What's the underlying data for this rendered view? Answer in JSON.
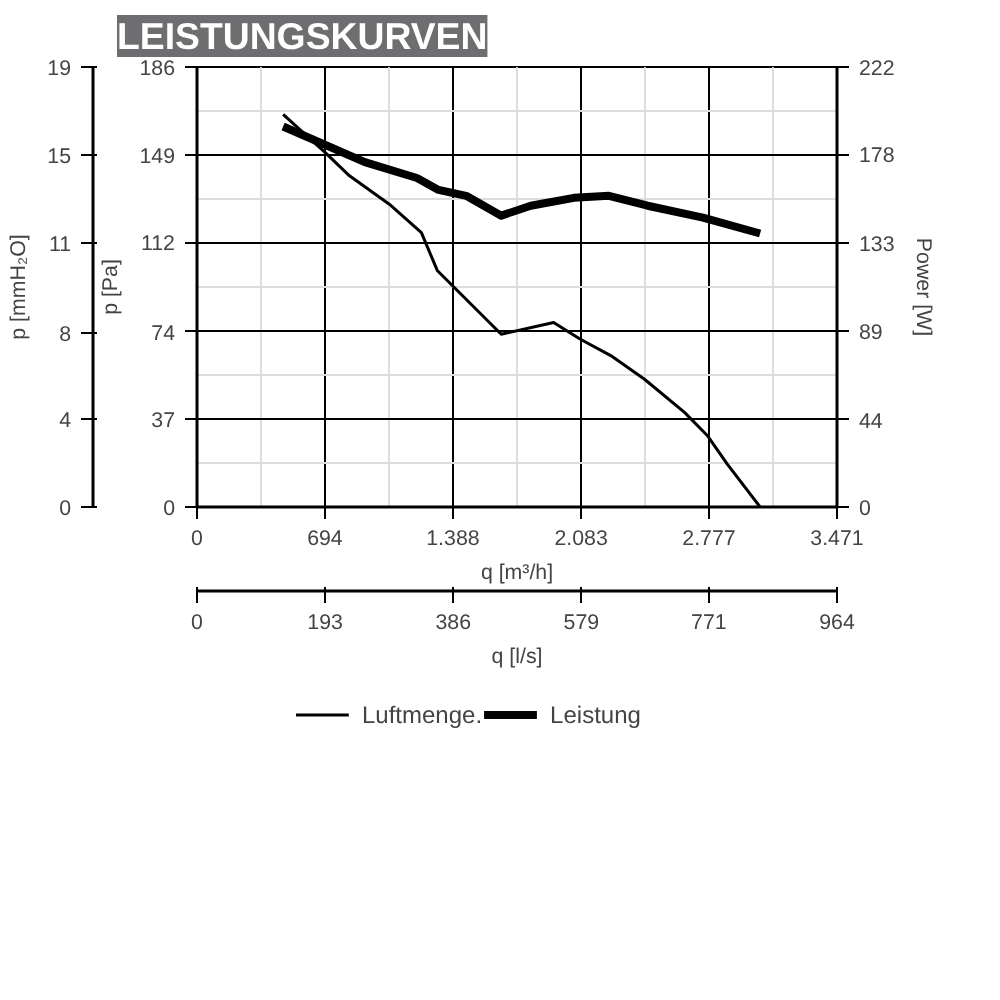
{
  "chart_data": {
    "type": "line",
    "title": "LEISTUNGSKURVEN",
    "xlabel": "q [m³/h]",
    "ylabel": "p [Pa]",
    "y2label": "Power [W]",
    "y3label": "p [mmH₂O]",
    "x2label": "q [l/s]",
    "xlim": [
      0,
      3471
    ],
    "xticks": [
      0,
      694,
      {
        "value": 1388,
        "label": "1.388"
      },
      {
        "value": 2083,
        "label": "2.083"
      },
      {
        "value": 2777,
        "label": "2.777"
      },
      {
        "value": 3471,
        "label": "3.471"
      }
    ],
    "x2lim": [
      0,
      964
    ],
    "x2ticks": [
      0,
      193,
      386,
      579,
      771,
      964
    ],
    "ylim": [
      0,
      186
    ],
    "yticks": [
      0,
      37,
      74,
      112,
      149,
      186
    ],
    "y2lim": [
      0,
      222
    ],
    "y2ticks": [
      0,
      44,
      89,
      133,
      178,
      222
    ],
    "y3lim": [
      0,
      19
    ],
    "y3ticks": [
      0,
      {
        "value": 3.8,
        "label": "4"
      },
      {
        "value": 7.5,
        "label": "8"
      },
      {
        "value": 11.4,
        "label": "11"
      },
      {
        "value": 15.2,
        "label": "15"
      },
      19
    ],
    "grid": true,
    "legend": "bottom",
    "line_style": "solid",
    "marker": "none",
    "series": [
      {
        "name": "Luftmenge.",
        "color": "#000000",
        "x": [
          467,
          693,
          827,
          1043,
          1217,
          1303,
          1650,
          1934,
          2077,
          2244,
          2427,
          2644,
          2770,
          2877,
          3054
        ],
        "values": [
          166,
          150,
          140,
          128,
          116,
          100,
          73,
          78,
          71,
          64,
          54,
          40,
          30,
          18,
          0
        ]
      },
      {
        "name": "Leistung",
        "color": "#000000",
        "axis": "y2",
        "x": [
          467,
          910,
          1193,
          1310,
          1460,
          1650,
          1810,
          2044,
          2234,
          2444,
          2744,
          3054
        ],
        "values": [
          192,
          174,
          166,
          160,
          157,
          147,
          152,
          156,
          157,
          152,
          146,
          138
        ]
      }
    ]
  }
}
